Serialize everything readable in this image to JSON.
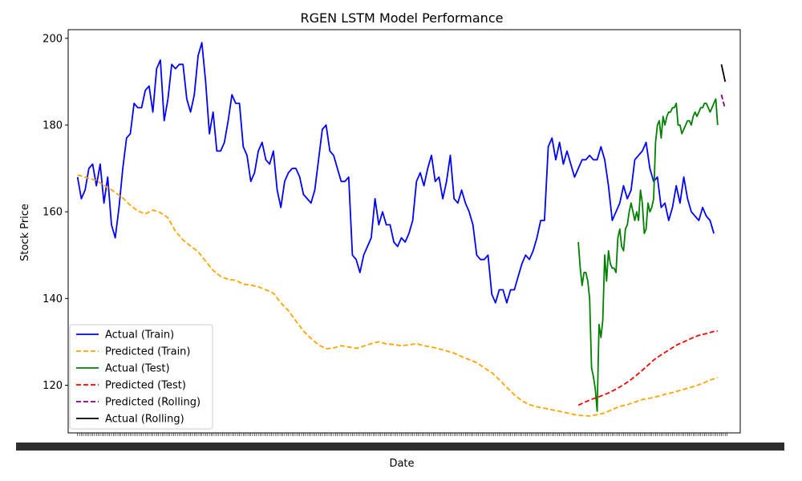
{
  "chart_data": {
    "type": "line",
    "title": "RGEN LSTM Model Performance",
    "xlabel": "Date",
    "ylabel": "Stock Price",
    "ylim": [
      109,
      202
    ],
    "yticks": [
      120,
      140,
      160,
      180,
      200
    ],
    "xlim": [
      -5,
      352
    ],
    "grid": false,
    "legend_position": "lower-left",
    "series": [
      {
        "name": "Actual (Train)",
        "color": "#0000ff",
        "dash": "solid",
        "x": [
          0,
          2,
          4,
          6,
          8,
          10,
          12,
          14,
          16,
          18,
          20,
          22,
          24,
          26,
          28,
          30,
          32,
          34,
          36,
          38,
          40,
          42,
          44,
          46,
          48,
          50,
          52,
          54,
          56,
          58,
          60,
          62,
          64,
          66,
          68,
          70,
          72,
          74,
          76,
          78,
          80,
          82,
          84,
          86,
          88,
          90,
          92,
          94,
          96,
          98,
          100,
          102,
          104,
          106,
          108,
          110,
          112,
          114,
          116,
          118,
          120,
          122,
          124,
          126,
          128,
          130,
          132,
          134,
          136,
          138,
          140,
          142,
          144,
          146,
          148,
          150,
          152,
          154,
          156,
          158,
          160,
          162,
          164,
          166,
          168,
          170,
          172,
          174,
          176,
          178,
          180,
          182,
          184,
          186,
          188,
          190,
          192,
          194,
          196,
          198,
          200,
          202,
          204,
          206,
          208,
          210,
          212,
          214,
          216,
          218,
          220,
          222,
          224,
          226,
          228,
          230,
          232,
          234,
          236,
          238,
          240,
          242,
          244,
          246,
          248,
          250,
          252,
          254,
          256,
          258,
          260,
          262,
          264,
          266,
          268,
          270,
          272,
          274,
          276,
          278,
          280,
          282,
          284,
          286,
          288,
          290,
          292,
          294,
          296,
          298,
          300,
          302,
          304,
          306,
          308,
          310,
          312,
          314,
          316,
          318,
          320,
          322,
          324,
          326,
          328,
          330,
          332,
          334,
          336,
          338
        ],
        "y": [
          168,
          163,
          165,
          170,
          171,
          166,
          171,
          162,
          168,
          157,
          154,
          161,
          170,
          177,
          178,
          185,
          184,
          184,
          188,
          189,
          183,
          193,
          195,
          181,
          186,
          194,
          193,
          194,
          194,
          186,
          183,
          187,
          196,
          199,
          190,
          178,
          183,
          174,
          174,
          176,
          181,
          187,
          185,
          185,
          175,
          173,
          167,
          169,
          174,
          176,
          172,
          171,
          174,
          165,
          161,
          167,
          169,
          170,
          170,
          168,
          164,
          163,
          162,
          165,
          172,
          179,
          180,
          174,
          173,
          170,
          167,
          167,
          168,
          150,
          149,
          146,
          150,
          152,
          154,
          163,
          157,
          160,
          157,
          157,
          153,
          152,
          154,
          153,
          155,
          158,
          167,
          169,
          166,
          170,
          173,
          167,
          168,
          163,
          167,
          173,
          163,
          162,
          165,
          162,
          160,
          157,
          150,
          149,
          149,
          150,
          141,
          139,
          142,
          142,
          139,
          142,
          142,
          145,
          148,
          150,
          149,
          151,
          154,
          158,
          158,
          175,
          177,
          172,
          176,
          171,
          174,
          171,
          168,
          170,
          172,
          172,
          173,
          172,
          172,
          175,
          172,
          166,
          158,
          160,
          162,
          166,
          163,
          165,
          172,
          173,
          174,
          176,
          170,
          167,
          168,
          161,
          162,
          158,
          161,
          166,
          162,
          168,
          163,
          160,
          159,
          158,
          161,
          159,
          158,
          155
        ]
      },
      {
        "name": "Predicted (Train)",
        "color": "#ffa500",
        "dash": "dashed",
        "x": [
          0,
          10,
          20,
          22,
          24,
          28,
          32,
          36,
          40,
          44,
          48,
          52,
          56,
          60,
          64,
          68,
          72,
          76,
          80,
          84,
          88,
          92,
          96,
          100,
          104,
          108,
          112,
          116,
          120,
          124,
          128,
          132,
          136,
          140,
          144,
          148,
          152,
          156,
          160,
          164,
          168,
          172,
          176,
          180,
          184,
          188,
          192,
          196,
          200,
          204,
          208,
          212,
          216,
          220,
          224,
          228,
          232,
          236,
          240,
          244,
          248,
          252,
          256,
          260,
          264,
          268,
          272,
          276,
          280,
          284,
          288,
          292,
          296,
          300,
          304,
          308,
          312,
          316,
          320,
          324,
          328,
          332,
          336,
          340
        ],
        "y": [
          168.5,
          167.2,
          164.5,
          163.8,
          163.2,
          161.5,
          160.2,
          159.5,
          160.4,
          159.8,
          158.6,
          155.5,
          153.5,
          152.1,
          150.8,
          148.6,
          146.5,
          145.1,
          144.4,
          144.2,
          143.3,
          143.1,
          142.7,
          142.0,
          141.2,
          139.0,
          137.2,
          134.8,
          132.5,
          130.8,
          129.3,
          128.4,
          128.6,
          129.1,
          128.8,
          128.5,
          129.0,
          129.6,
          130.0,
          129.5,
          129.4,
          129.1,
          129.3,
          129.6,
          129.1,
          128.8,
          128.4,
          127.9,
          127.4,
          126.6,
          125.9,
          125.2,
          124.0,
          122.9,
          121.3,
          119.5,
          117.8,
          116.4,
          115.5,
          115.0,
          114.7,
          114.3,
          114.0,
          113.6,
          113.2,
          113.0,
          112.9,
          113.2,
          113.6,
          114.4,
          115.1,
          115.5,
          116.1,
          116.7,
          117.0,
          117.4,
          117.9,
          118.3,
          118.8,
          119.3,
          119.8,
          120.4,
          121.2,
          121.7
        ]
      },
      {
        "name": "Actual (Test)",
        "color": "#008000",
        "dash": "solid",
        "x": [
          266,
          267,
          268,
          269,
          270,
          271,
          272,
          273,
          274,
          275,
          276,
          277,
          278,
          279,
          280,
          281,
          282,
          283,
          284,
          285,
          286,
          287,
          288,
          289,
          290,
          291,
          292,
          293,
          294,
          295,
          296,
          297,
          298,
          299,
          300,
          301,
          302,
          303,
          304,
          305,
          306,
          307,
          308,
          309,
          310,
          311,
          312,
          313,
          314,
          315,
          316,
          317,
          318,
          319,
          320,
          321,
          322,
          323,
          324,
          325,
          326,
          327,
          328,
          329,
          330,
          331,
          332,
          333,
          334,
          335,
          336,
          337,
          338,
          339,
          340
        ],
        "y": [
          153,
          147,
          143,
          146,
          146,
          144,
          140,
          124,
          122,
          119,
          114,
          134,
          131,
          135,
          150,
          144,
          151,
          148,
          147,
          147,
          146,
          154,
          156,
          152,
          151,
          156,
          157,
          160,
          162,
          160,
          158,
          160,
          158,
          165,
          162,
          155,
          156,
          162,
          160,
          161,
          163,
          176,
          180,
          181,
          177,
          182,
          180,
          182,
          183,
          183,
          184,
          184,
          185,
          180,
          180,
          178,
          179,
          180,
          181,
          181,
          180,
          182,
          183,
          182,
          183,
          184,
          184,
          185,
          185,
          184,
          183,
          184,
          185,
          186,
          180
        ]
      },
      {
        "name": "Predicted (Test)",
        "color": "#ff0000",
        "dash": "dashed",
        "x": [
          266,
          270,
          274,
          278,
          282,
          286,
          290,
          294,
          298,
          302,
          306,
          310,
          314,
          318,
          322,
          326,
          330,
          334,
          338,
          340
        ],
        "y": [
          115.4,
          116.2,
          116.9,
          117.5,
          118.2,
          119.1,
          120.1,
          121.3,
          122.7,
          124.2,
          125.8,
          127.0,
          128.1,
          129.2,
          130.0,
          130.8,
          131.5,
          131.9,
          132.4,
          132.5
        ]
      },
      {
        "name": "Predicted (Rolling)",
        "color": "#800080",
        "dash": "dashed",
        "x": [
          342,
          343,
          344
        ],
        "y": [
          187.0,
          185.3,
          183.8
        ]
      },
      {
        "name": "Actual (Rolling)",
        "color": "#000000",
        "dash": "solid",
        "x": [
          342,
          343,
          344
        ],
        "y": [
          194.0,
          192.0,
          190.0
        ]
      }
    ]
  }
}
